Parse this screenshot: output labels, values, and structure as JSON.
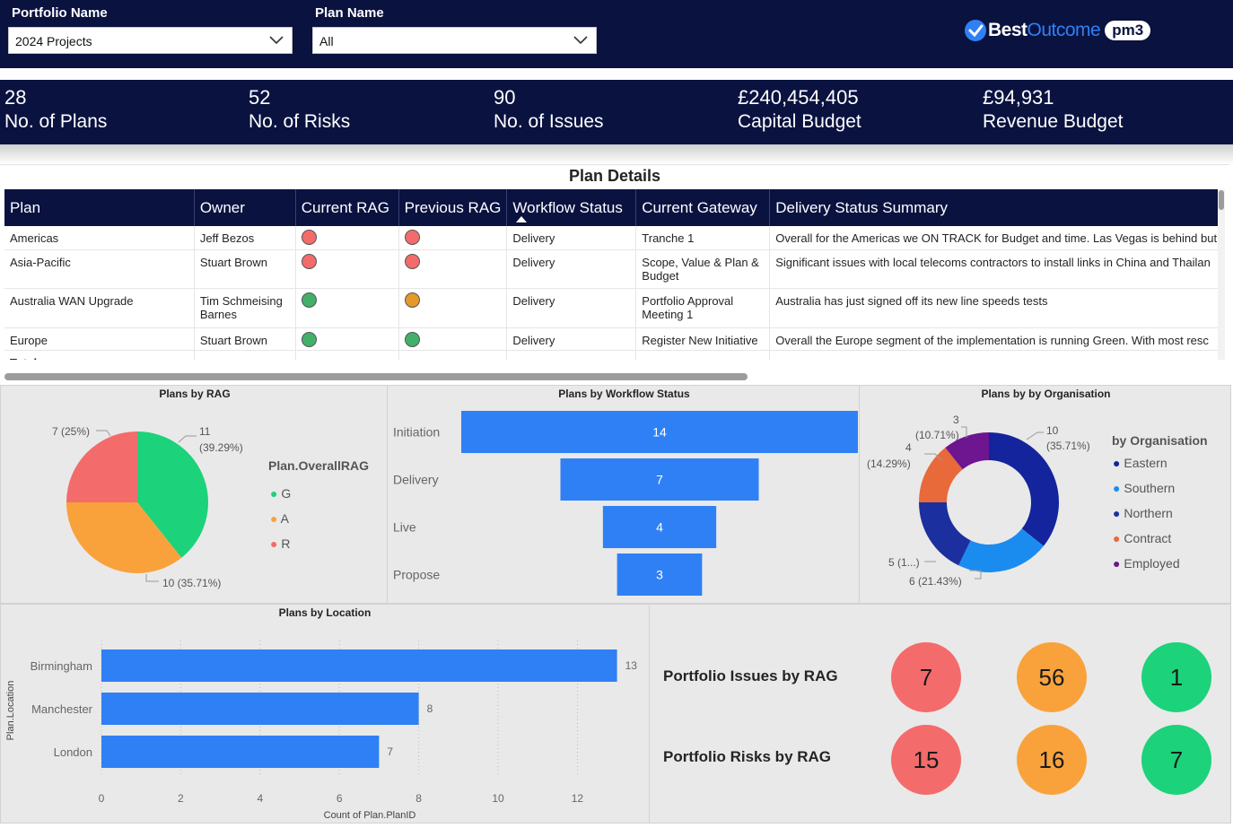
{
  "filters": {
    "portfolio_label": "Portfolio Name",
    "portfolio_value": "2024 Projects",
    "plan_label": "Plan Name",
    "plan_value": "All"
  },
  "brand": {
    "name_part1": "Best",
    "name_part2": "Outcome",
    "badge": "pm3"
  },
  "kpis": [
    {
      "value": "28",
      "label": "No. of Plans"
    },
    {
      "value": "52",
      "label": "No. of Risks"
    },
    {
      "value": "90",
      "label": "No. of Issues"
    },
    {
      "value": "£240,454,405",
      "label": "Capital Budget"
    },
    {
      "value": "£94,931",
      "label": "Revenue Budget"
    }
  ],
  "plan_details": {
    "title": "Plan Details",
    "columns": [
      "Plan",
      "Owner",
      "Current RAG",
      "Previous RAG",
      "Workflow Status",
      "Current Gateway",
      "Delivery Status Summary"
    ],
    "rows": [
      {
        "plan": "Americas",
        "owner": "Jeff Bezos",
        "current_rag": "R",
        "previous_rag": "R",
        "status": "Delivery",
        "gateway": "Tranche 1",
        "summary": "Overall for the Americas we ON TRACK for Budget and time. Las Vegas is behind but"
      },
      {
        "plan": "Asia-Pacific",
        "owner": "Stuart Brown",
        "current_rag": "R",
        "previous_rag": "R",
        "status": "Delivery",
        "gateway": "Scope, Value & Plan &",
        "gateway2": "Budget",
        "summary": "Significant issues with local telecoms contractors to install links in China and Thailan"
      },
      {
        "plan": "Australia WAN Upgrade",
        "owner": "Tim Schmeising",
        "owner2": "Barnes",
        "current_rag": "G",
        "previous_rag": "A",
        "status": "Delivery",
        "gateway": "Portfolio Approval",
        "gateway2": "Meeting 1",
        "summary": "Australia has just signed off its new line speeds tests"
      },
      {
        "plan": "Europe",
        "owner": "Stuart Brown",
        "current_rag": "G",
        "previous_rag": "G",
        "status": "Delivery",
        "gateway": "Register New Initiative",
        "summary": "Overall the Europe segment of the implementation is running Green. With most resc"
      }
    ],
    "total_label": "Total"
  },
  "colors": {
    "navy": "#0a1240",
    "red": "#f46b6b",
    "amber": "#f9a23c",
    "green": "#1cd27a",
    "bar_blue": "#2f80f5",
    "eastern": "#13249c",
    "southern": "#1a8cf0",
    "northern": "#1c2f9e",
    "contract": "#e8693a",
    "employed": "#6e1590"
  },
  "chart_data": [
    {
      "type": "pie",
      "title": "Plans by RAG",
      "legend_title": "Plan.OverallRAG",
      "categories": [
        "G",
        "A",
        "R"
      ],
      "values": [
        11,
        10,
        7
      ],
      "labels": [
        "11",
        "(39.29%)",
        "10 (35.71%)",
        "7 (25%)"
      ]
    },
    {
      "type": "bar",
      "title": "Plans by Workflow Status",
      "categories": [
        "Initiation",
        "Delivery",
        "Live",
        "Propose"
      ],
      "values": [
        14,
        7,
        4,
        3
      ]
    },
    {
      "type": "pie",
      "title": "Plans by by Organisation",
      "legend_title": "by Organisation",
      "categories": [
        "Eastern",
        "Southern",
        "Northern",
        "Contract",
        "Employed"
      ],
      "values": [
        10,
        6,
        5,
        4,
        3
      ],
      "labels": [
        "10",
        "(35.71%)",
        "6 (21.43%)",
        "5 (1...)",
        "4",
        "(14.29%)",
        "3",
        "(10.71%)"
      ]
    },
    {
      "type": "bar",
      "title": "Plans by Location",
      "categories": [
        "Birmingham",
        "Manchester",
        "London"
      ],
      "values": [
        13,
        8,
        7
      ],
      "xlabel": "Count of Plan.PlanID",
      "ylabel": "Plan.Location",
      "xlim": [
        0,
        13.5
      ],
      "ticks": [
        "0",
        "2",
        "4",
        "6",
        "8",
        "10",
        "12"
      ]
    }
  ],
  "portfolio_rag": {
    "issues_label": "Portfolio Issues by RAG",
    "issues": [
      "7",
      "56",
      "1"
    ],
    "risks_label": "Portfolio Risks by RAG",
    "risks": [
      "15",
      "16",
      "7"
    ]
  }
}
